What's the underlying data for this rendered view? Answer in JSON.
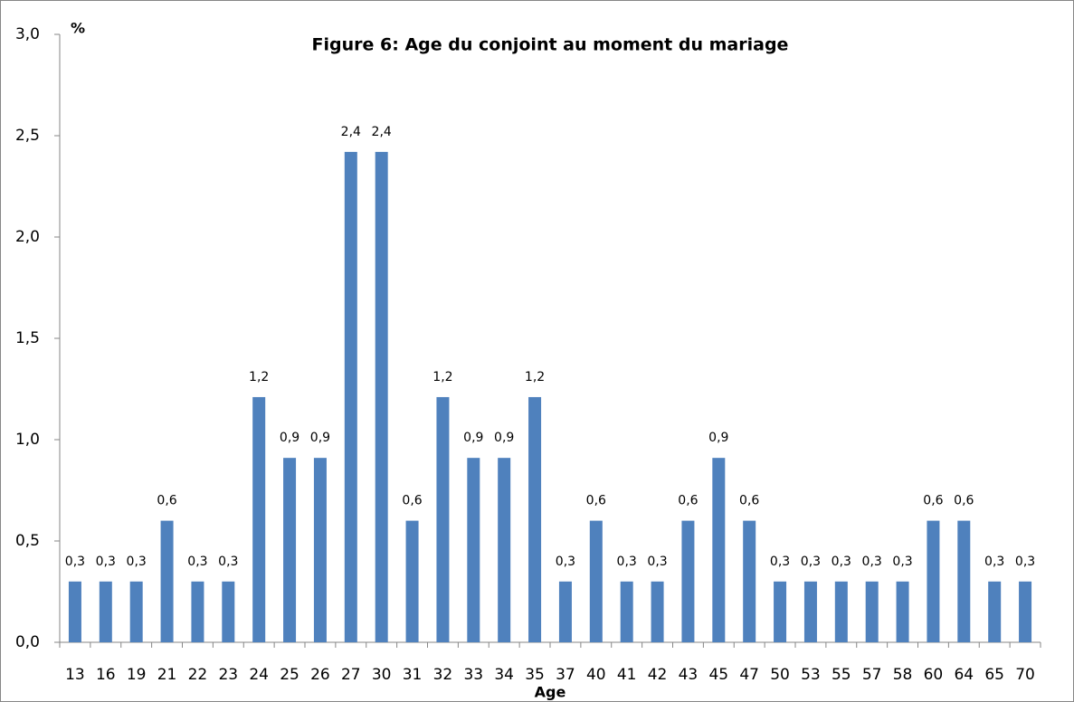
{
  "chart_data": {
    "type": "bar",
    "title": "Figure 6: Age du conjoint au moment du mariage",
    "y_label": "%",
    "x_label": "Age",
    "categories": [
      "13",
      "16",
      "19",
      "21",
      "22",
      "23",
      "24",
      "25",
      "26",
      "27",
      "30",
      "31",
      "32",
      "33",
      "34",
      "35",
      "37",
      "40",
      "41",
      "42",
      "43",
      "45",
      "47",
      "50",
      "53",
      "55",
      "57",
      "58",
      "60",
      "64",
      "65",
      "70"
    ],
    "values": [
      0.3,
      0.3,
      0.3,
      0.6,
      0.3,
      0.3,
      1.21,
      0.91,
      0.91,
      2.42,
      2.42,
      0.6,
      1.21,
      0.91,
      0.91,
      1.21,
      0.3,
      0.6,
      0.3,
      0.3,
      0.6,
      0.91,
      0.6,
      0.3,
      0.3,
      0.3,
      0.3,
      0.3,
      0.6,
      0.6,
      0.3,
      0.3
    ],
    "value_labels": [
      "0,3",
      "0,3",
      "0,3",
      "0,6",
      "0,3",
      "0,3",
      "1,2",
      "0,9",
      "0,9",
      "2,4",
      "2,4",
      "0,6",
      "1,2",
      "0,9",
      "0,9",
      "1,2",
      "0,3",
      "0,6",
      "0,3",
      "0,3",
      "0,6",
      "0,9",
      "0,6",
      "0,3",
      "0,3",
      "0,3",
      "0,3",
      "0,3",
      "0,6",
      "0,6",
      "0,3",
      "0,3"
    ],
    "color": "#4f81bd",
    "ylim": [
      0,
      3
    ],
    "yticks": [
      {
        "value": 0,
        "label": "0,0"
      },
      {
        "value": 0.5,
        "label": "0,5"
      },
      {
        "value": 1,
        "label": "1,0"
      },
      {
        "value": 1.5,
        "label": "1,5"
      },
      {
        "value": 2,
        "label": "2,0"
      },
      {
        "value": 2.5,
        "label": "2,5"
      },
      {
        "value": 3,
        "label": "3,0"
      }
    ],
    "grid": false
  }
}
